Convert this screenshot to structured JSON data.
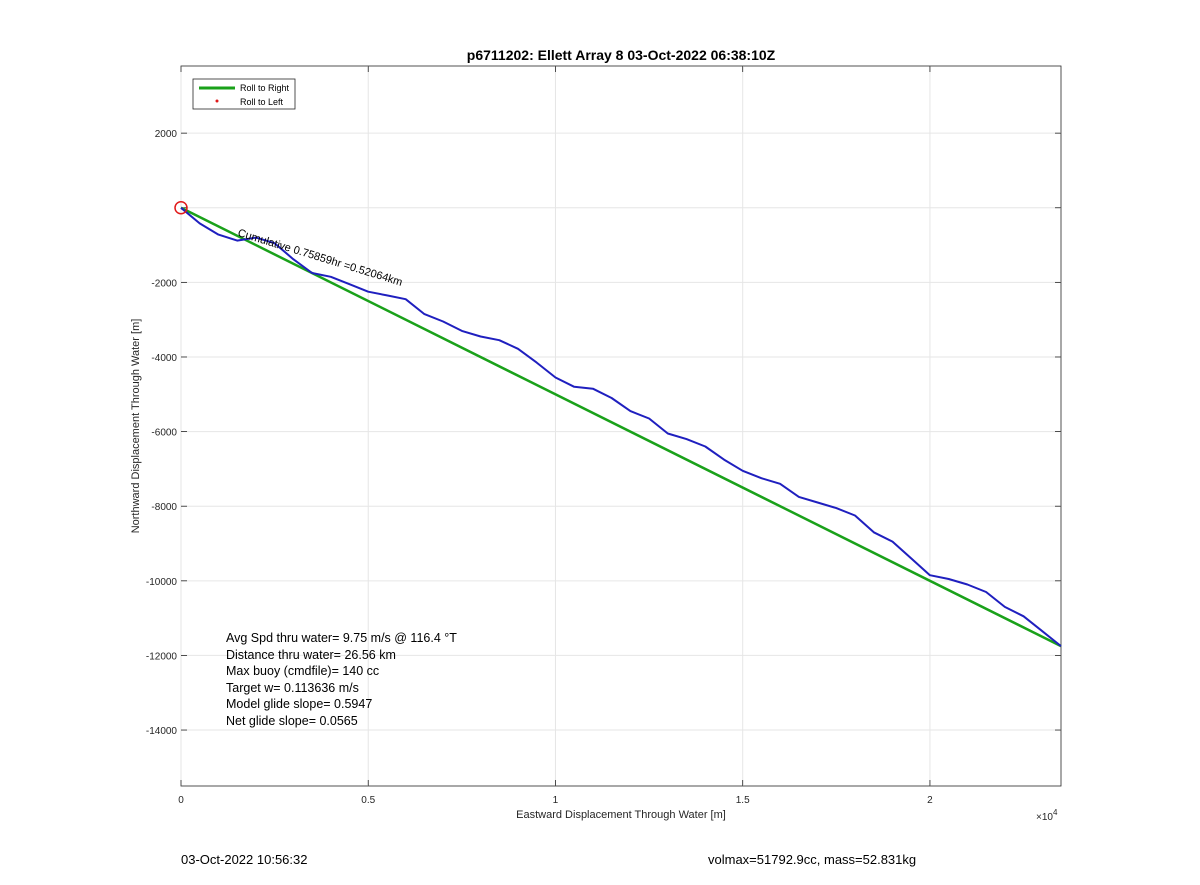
{
  "chart_data": {
    "type": "line",
    "title": "p6711202: Ellett Array 8 03-Oct-2022 06:38:10Z",
    "xlabel": "Eastward Displacement Through Water [m]",
    "ylabel": "Northward Displacement Through Water [m]",
    "x_exponent_label": "×10",
    "x_exponent_power": "4",
    "xlim": [
      0,
      23500
    ],
    "ylim": [
      -15500,
      3800
    ],
    "x_ticks": [
      0,
      5000,
      10000,
      15000,
      20000
    ],
    "x_tick_labels": [
      "0",
      "0.5",
      "1",
      "1.5",
      "2"
    ],
    "y_ticks": [
      2000,
      0,
      -2000,
      -4000,
      -6000,
      -8000,
      -10000,
      -12000,
      -14000
    ],
    "y_tick_labels": [
      "2000",
      "",
      "-2000",
      "-4000",
      "-6000",
      "-8000",
      "-10000",
      "-12000",
      "-14000"
    ],
    "grid": true,
    "legend": {
      "position": "top-left",
      "entries": [
        {
          "label": "Roll to Right",
          "color": "#1aa11a",
          "style": "line"
        },
        {
          "label": "Roll to Left",
          "color": "#e11a1a",
          "style": "dot"
        }
      ]
    },
    "series": [
      {
        "color": "#1aa11a",
        "x": [
          0,
          23500
        ],
        "y": [
          0,
          -11750
        ]
      },
      {
        "color": "#1f1fbf",
        "x": [
          0,
          500,
          1000,
          1500,
          2000,
          2500,
          3000,
          3500,
          4000,
          4500,
          5000,
          5500,
          6000,
          6500,
          7000,
          7500,
          8000,
          8500,
          9000,
          9500,
          10000,
          10500,
          11000,
          11500,
          12000,
          12500,
          13000,
          13500,
          14000,
          14500,
          15000,
          15500,
          16000,
          16500,
          17000,
          17500,
          18000,
          18500,
          19000,
          19500,
          20000,
          20500,
          21000,
          21500,
          22000,
          22500,
          23000,
          23500
        ],
        "y": [
          0,
          -420,
          -720,
          -880,
          -800,
          -950,
          -1380,
          -1750,
          -1850,
          -2050,
          -2250,
          -2350,
          -2450,
          -2850,
          -3050,
          -3300,
          -3450,
          -3550,
          -3780,
          -4150,
          -4550,
          -4800,
          -4850,
          -5100,
          -5450,
          -5650,
          -6050,
          -6200,
          -6400,
          -6750,
          -7050,
          -7250,
          -7400,
          -7750,
          -7900,
          -8050,
          -8250,
          -8700,
          -8950,
          -9400,
          -9850,
          -9950,
          -10100,
          -10300,
          -10700,
          -10950,
          -11350,
          -11750
        ]
      }
    ],
    "annotations": [
      {
        "text": "Cumulative 0.75859hr =0.52064km",
        "x": 1500,
        "y": -750,
        "rotation_deg": 17
      }
    ],
    "start_markers": [
      {
        "type": "circle",
        "color": "#e11a1a",
        "x": 0,
        "y": 0
      }
    ],
    "info_text": [
      "Avg Spd thru water=  9.75 m/s @ 116.4 °T",
      "Distance thru water= 26.56 km",
      "Max buoy (cmdfile)= 140 cc",
      "Target w= 0.113636 m/s",
      "Model glide slope= 0.5947",
      "Net glide slope= 0.0565"
    ]
  },
  "footer": {
    "left": "03-Oct-2022 10:56:32",
    "right": "volmax=51792.9cc, mass=52.831kg"
  }
}
